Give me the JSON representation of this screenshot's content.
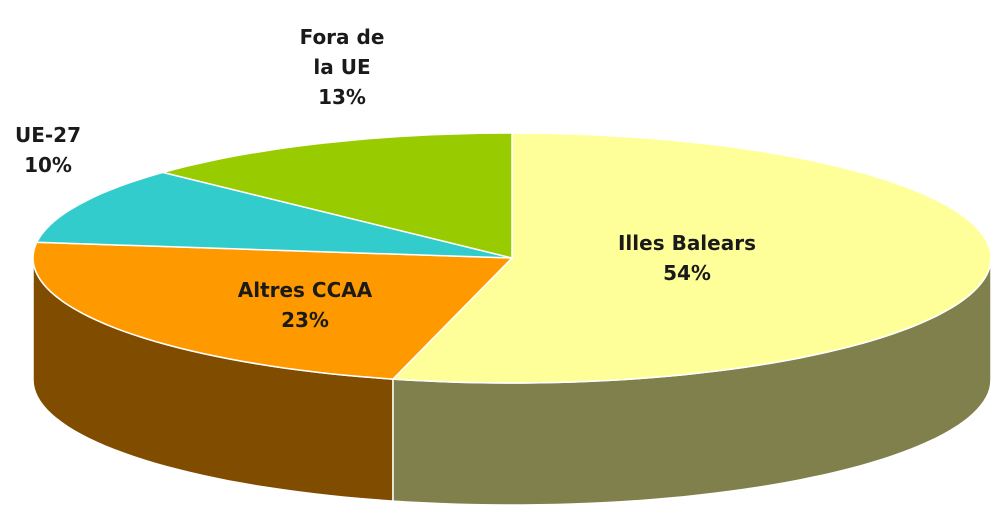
{
  "chart_data": {
    "type": "pie",
    "categories": [
      "Illes Balears",
      "Altres CCAA",
      "UE-27",
      "Fora de la UE"
    ],
    "values": [
      54,
      23,
      10,
      13
    ],
    "value_labels": [
      "54%",
      "23%",
      "10%",
      "13%"
    ],
    "colors": [
      "#ffff99",
      "#ff9900",
      "#33cccc",
      "#99cc00"
    ]
  }
}
